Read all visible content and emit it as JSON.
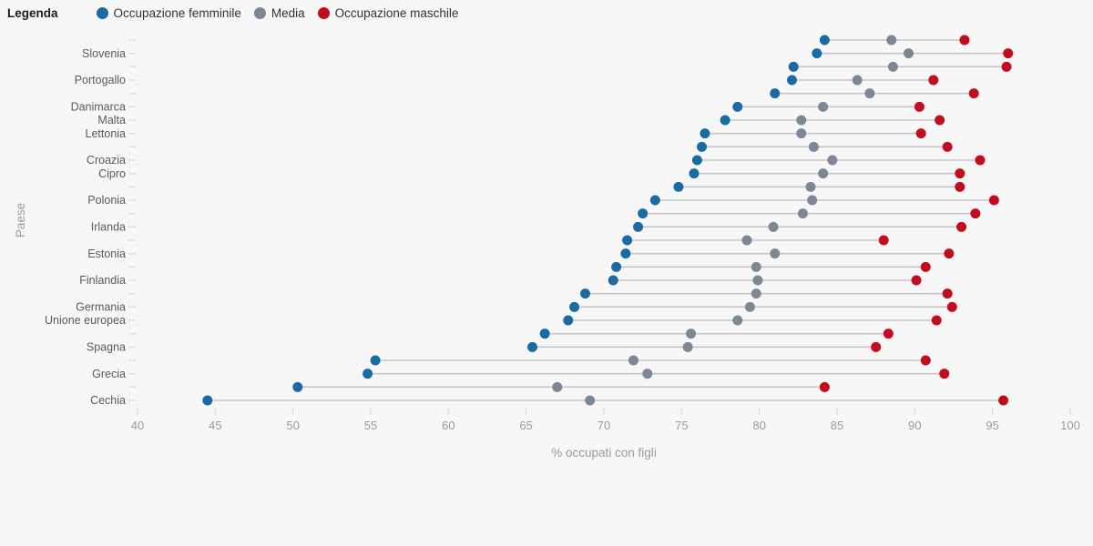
{
  "legend": {
    "title": "Legenda",
    "items": [
      {
        "label": "Occupazione femminile",
        "color": "#1a6ba3"
      },
      {
        "label": "Media",
        "color": "#7d8795"
      },
      {
        "label": "Occupazione maschile",
        "color": "#c20d1e"
      }
    ]
  },
  "colors": {
    "background": "#f7f7f8",
    "connector": "#c6c6c6",
    "axis_text": "#9b9b9b",
    "category_text": "#5a5a5a",
    "tick_mark": "#dddddd"
  },
  "chart_data": {
    "type": "dumbbell",
    "title": "",
    "xlabel": "% occupati con figli",
    "ylabel": "Paese",
    "xlim": [
      40,
      100
    ],
    "x_ticks": [
      40,
      45,
      50,
      55,
      60,
      65,
      70,
      75,
      80,
      85,
      90,
      95,
      100
    ],
    "grid": false,
    "legend_position": "top-left",
    "series_names": [
      "Occupazione femminile",
      "Media",
      "Occupazione maschile"
    ],
    "note": "rows ordered top to bottom as rendered; rows with empty label are unlabeled in the chart",
    "rows": [
      {
        "label": "",
        "female": 84.2,
        "media": 88.5,
        "male": 93.2
      },
      {
        "label": "Slovenia",
        "female": 83.7,
        "media": 89.6,
        "male": 96.0
      },
      {
        "label": "",
        "female": 82.2,
        "media": 88.6,
        "male": 95.9
      },
      {
        "label": "Portogallo",
        "female": 82.1,
        "media": 86.3,
        "male": 91.2
      },
      {
        "label": "",
        "female": 81.0,
        "media": 87.1,
        "male": 93.8
      },
      {
        "label": "Danimarca",
        "female": 78.6,
        "media": 84.1,
        "male": 90.3
      },
      {
        "label": "Malta",
        "female": 77.8,
        "media": 82.7,
        "male": 91.6
      },
      {
        "label": "Lettonia",
        "female": 76.5,
        "media": 82.7,
        "male": 90.4
      },
      {
        "label": "",
        "female": 76.3,
        "media": 83.5,
        "male": 92.1
      },
      {
        "label": "Croazia",
        "female": 76.0,
        "media": 84.7,
        "male": 94.2
      },
      {
        "label": "Cipro",
        "female": 75.8,
        "media": 84.1,
        "male": 92.9
      },
      {
        "label": "",
        "female": 74.8,
        "media": 83.3,
        "male": 92.9
      },
      {
        "label": "Polonia",
        "female": 73.3,
        "media": 83.4,
        "male": 95.1
      },
      {
        "label": "",
        "female": 72.5,
        "media": 82.8,
        "male": 93.9
      },
      {
        "label": "Irlanda",
        "female": 72.2,
        "media": 80.9,
        "male": 93.0
      },
      {
        "label": "",
        "female": 71.5,
        "media": 79.2,
        "male": 88.0
      },
      {
        "label": "Estonia",
        "female": 71.4,
        "media": 81.0,
        "male": 92.2
      },
      {
        "label": "",
        "female": 70.8,
        "media": 79.8,
        "male": 90.7
      },
      {
        "label": "Finlandia",
        "female": 70.6,
        "media": 79.9,
        "male": 90.1
      },
      {
        "label": "",
        "female": 68.8,
        "media": 79.8,
        "male": 92.1
      },
      {
        "label": "Germania",
        "female": 68.1,
        "media": 79.4,
        "male": 92.4
      },
      {
        "label": "Unione europea",
        "female": 67.7,
        "media": 78.6,
        "male": 91.4
      },
      {
        "label": "",
        "female": 66.2,
        "media": 75.6,
        "male": 88.3
      },
      {
        "label": "Spagna",
        "female": 65.4,
        "media": 75.4,
        "male": 87.5
      },
      {
        "label": "",
        "female": 55.3,
        "media": 71.9,
        "male": 90.7
      },
      {
        "label": "Grecia",
        "female": 54.8,
        "media": 72.8,
        "male": 91.9
      },
      {
        "label": "",
        "female": 50.3,
        "media": 67.0,
        "male": 84.2
      },
      {
        "label": "Cechia",
        "female": 44.5,
        "media": 69.1,
        "male": 95.7
      }
    ]
  }
}
